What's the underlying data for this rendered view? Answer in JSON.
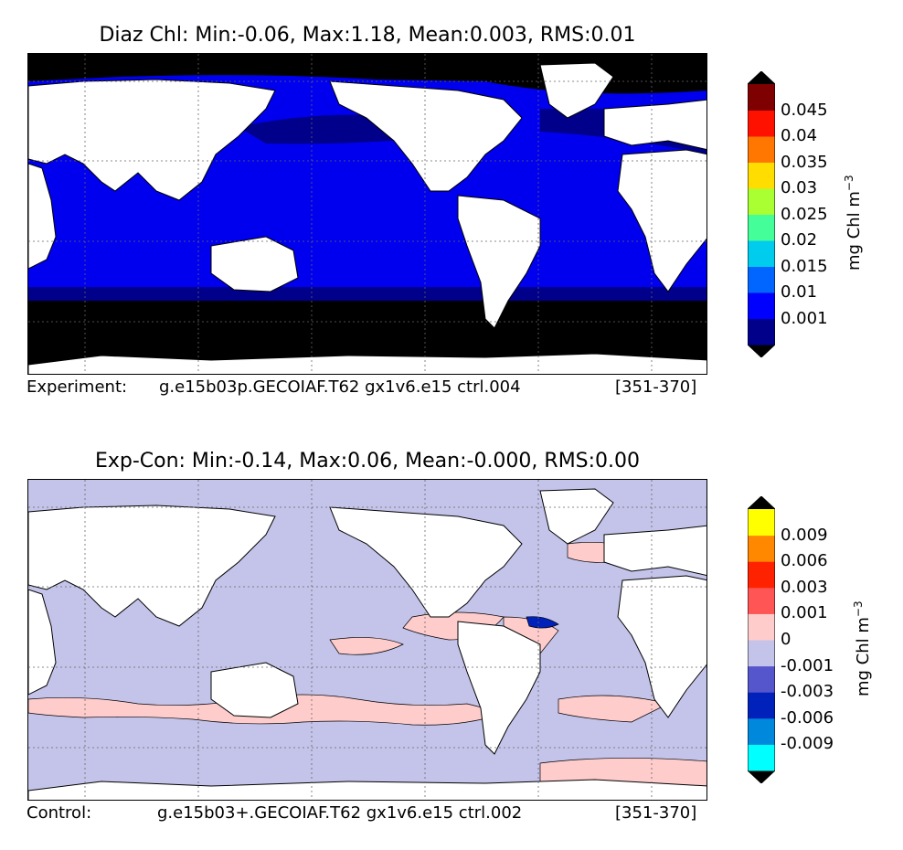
{
  "panels": [
    {
      "title": "Diaz Chl: Min:-0.06, Max:1.18, Mean:0.003, RMS:0.01",
      "caption_label": "Experiment:",
      "caption_case": "g.e15b03p.GECOIAF.T62 gx1v6.e15 ctrl.004",
      "caption_years": "[351-370]",
      "colorbar": {
        "unit": "mg Chl m",
        "unit_exponent": "−3",
        "ticks": [
          "0.001",
          "0.01",
          "0.015",
          "0.02",
          "0.025",
          "0.03",
          "0.035",
          "0.04",
          "0.045"
        ],
        "colors": [
          "#00008b",
          "#0000ff",
          "#0066ff",
          "#00ccee",
          "#44ff99",
          "#aaff33",
          "#ffdd00",
          "#ff7700",
          "#ff1100",
          "#7f0000"
        ],
        "under_color": "#000000",
        "over_color": "#000000"
      }
    },
    {
      "title": "Exp-Con: Min:-0.14, Max:0.06, Mean:-0.000, RMS:0.00",
      "caption_label": "Control:",
      "caption_case": "g.e15b03+.GECOIAF.T62 gx1v6.e15 ctrl.002",
      "caption_years": "[351-370]",
      "colorbar": {
        "unit": "mg Chl m",
        "unit_exponent": "−3",
        "ticks": [
          "-0.009",
          "-0.006",
          "-0.003",
          "-0.001",
          "0",
          "0.001",
          "0.003",
          "0.006",
          "0.009"
        ],
        "colors": [
          "#00ffff",
          "#0088dd",
          "#0022bb",
          "#5555cc",
          "#c4c4ea",
          "#ffcccc",
          "#ff5555",
          "#ff2200",
          "#ff8800",
          "#ffff00"
        ],
        "under_color": "#000000",
        "over_color": "#000000"
      }
    }
  ],
  "map_colors": {
    "land": "#ffffff",
    "top_ocean": "#0000ee",
    "top_polar": "#000000",
    "top_subpolar": "#00008b",
    "bottom_ocean": "#c4c4ea",
    "bottom_positive": "#ffcccc"
  }
}
